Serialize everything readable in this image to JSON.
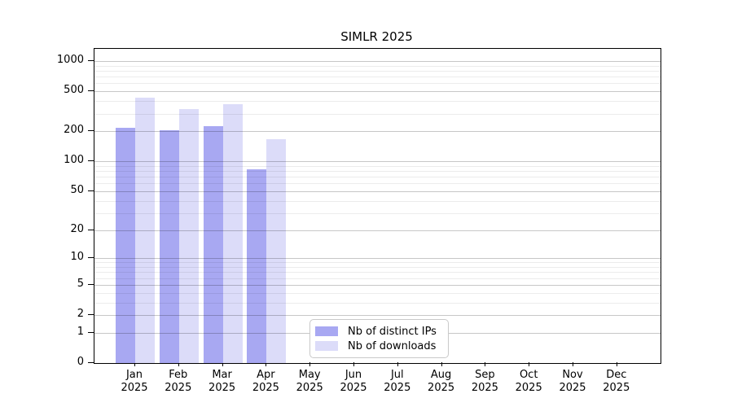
{
  "chart_data": {
    "type": "bar",
    "title": "SIMLR 2025",
    "y_scale": "log1p",
    "ylim": [
      0,
      1000
    ],
    "yticks": [
      0,
      1,
      2,
      5,
      10,
      20,
      50,
      100,
      200,
      500,
      1000
    ],
    "grid": true,
    "categories": [
      "Jan",
      "Feb",
      "Mar",
      "Apr",
      "May",
      "Jun",
      "Jul",
      "Aug",
      "Sep",
      "Oct",
      "Nov",
      "Dec"
    ],
    "year_label": "2025",
    "series": [
      {
        "name": "Nb of distinct IPs",
        "color": "#a8a8f2",
        "values": [
          215,
          205,
          225,
          83,
          null,
          null,
          null,
          null,
          null,
          null,
          null,
          null
        ]
      },
      {
        "name": "Nb of downloads",
        "color": "#dcdcf9",
        "values": [
          430,
          330,
          370,
          168,
          null,
          null,
          null,
          null,
          null,
          null,
          null,
          null
        ]
      }
    ],
    "legend": {
      "position": "inside-bottom-left-of-center",
      "entries": [
        "Nb of distinct IPs",
        "Nb of downloads"
      ]
    }
  }
}
